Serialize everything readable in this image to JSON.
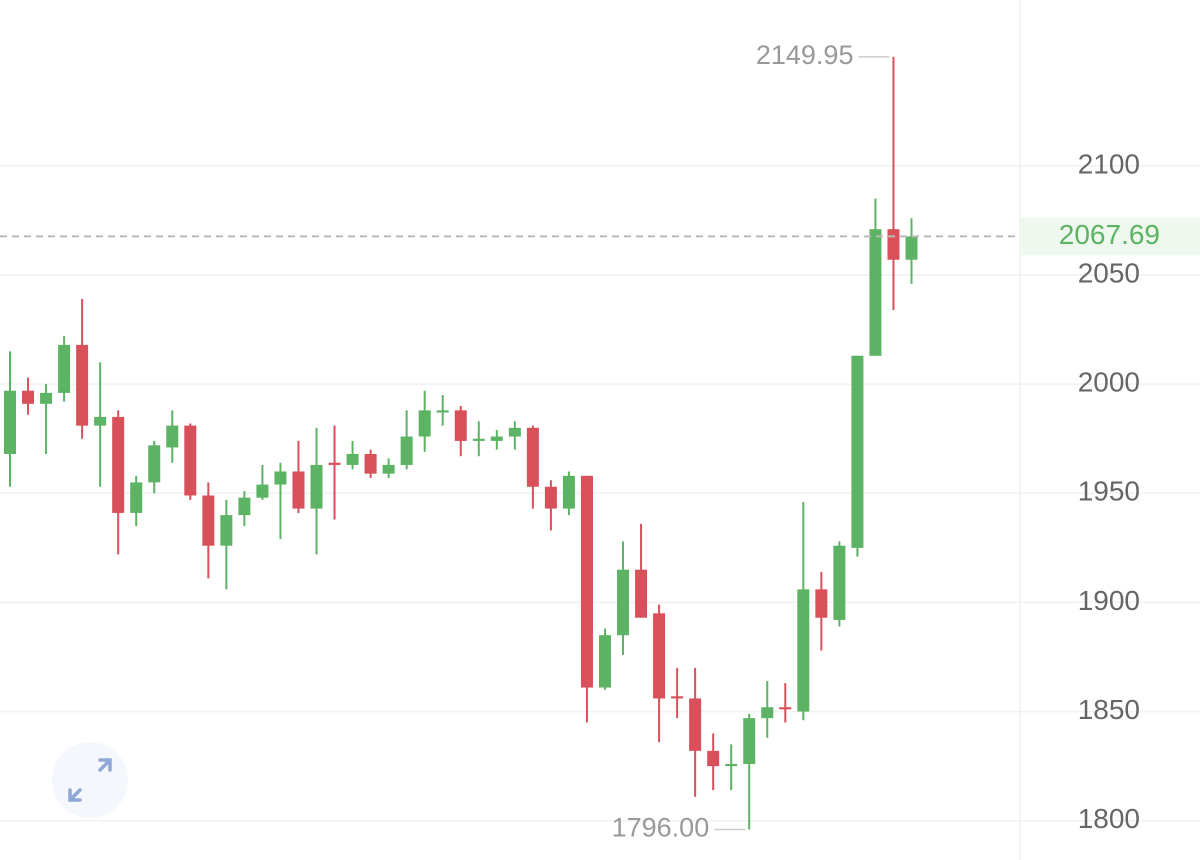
{
  "chart_data": {
    "type": "candlestick",
    "up_color": "#5cb363",
    "down_color": "#d8505a",
    "open": [
      1968,
      1997,
      1991,
      1996,
      2018,
      1981,
      1985,
      1941,
      1955,
      1971,
      1981,
      1949,
      1926,
      1940,
      1948,
      1954,
      1960,
      1943,
      1964,
      1963,
      1968,
      1959,
      1963,
      1976,
      1987,
      1988,
      1974,
      1974,
      1976,
      1980,
      1953,
      1943,
      1958,
      1861,
      1885,
      1915,
      1895,
      1857,
      1856,
      1832,
      1825,
      1826,
      1847,
      1852,
      1850,
      1906,
      1892,
      1925,
      2013,
      2071,
      2057
    ],
    "high": [
      2015,
      2003,
      2000,
      2022,
      2039,
      2010,
      1988,
      1958,
      1974,
      1988,
      1982,
      1955,
      1947,
      1951,
      1963,
      1964,
      1974,
      1980,
      1981,
      1974,
      1970,
      1966,
      1988,
      1997,
      1995,
      1990,
      1983,
      1979,
      1983,
      1981,
      1956,
      1960,
      1958,
      1888,
      1928,
      1936,
      1899,
      1870,
      1870,
      1840,
      1835,
      1849,
      1864,
      1863,
      1946,
      1914,
      1928,
      2013,
      2085,
      2149.95,
      2076
    ],
    "low": [
      1953,
      1986,
      1968,
      1992,
      1975,
      1953,
      1922,
      1935,
      1950,
      1964,
      1947,
      1911,
      1906,
      1935,
      1947,
      1929,
      1941,
      1922,
      1938,
      1961,
      1957,
      1957,
      1961,
      1969,
      1981,
      1967,
      1967,
      1970,
      1970,
      1943,
      1933,
      1940,
      1845,
      1860,
      1876,
      1893,
      1836,
      1847,
      1811,
      1814,
      1814,
      1796,
      1838,
      1845,
      1846,
      1878,
      1889,
      1921,
      2013,
      2034,
      2046
    ],
    "close": [
      1997,
      1991,
      1996,
      2018,
      1981,
      1985,
      1941,
      1955,
      1972,
      1981,
      1949,
      1926,
      1940,
      1948,
      1954,
      1960,
      1943,
      1963,
      1963,
      1968,
      1959,
      1963,
      1976,
      1988,
      1988,
      1974,
      1975,
      1976,
      1980,
      1953,
      1943,
      1958,
      1861,
      1885,
      1915,
      1893,
      1856,
      1856,
      1832,
      1825,
      1826,
      1847,
      1852,
      1851,
      1906,
      1893,
      1926,
      2013,
      2071,
      2057,
      2067.69
    ],
    "ylim": [
      1782,
      2176
    ],
    "yticks": [
      1800,
      1850,
      1900,
      1950,
      2000,
      2050,
      2100
    ],
    "grid": true,
    "annotations": [
      {
        "value": 2149.95,
        "label": "2149.95"
      },
      {
        "value": 1796,
        "label": "1796.00"
      }
    ],
    "last_price": {
      "value": 2067.69,
      "label": "2067.69"
    }
  }
}
